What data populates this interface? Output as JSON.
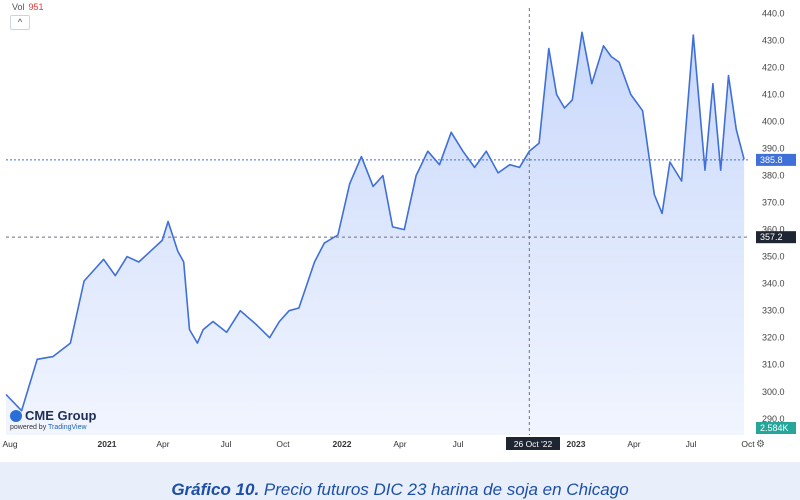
{
  "header": {
    "vol_label": "Vol",
    "vol_value": "951",
    "collapse_glyph": "^"
  },
  "branding": {
    "name": "CME Group",
    "powered_by": "powered by",
    "powered_name": "TradingView"
  },
  "caption": {
    "prefix": "Gráfico 10.",
    "text": " Precio futuros DIC 23 harina de soja en Chicago"
  },
  "colors": {
    "line": "#3f6fd8",
    "fill_top": "#c9d8fb",
    "fill_bottom": "#f1f5fe",
    "crosshair": "#6a7280",
    "vol_up": "#a8dcc7",
    "vol_down": "#f0b3b3"
  },
  "icons": {
    "settings": "gear-icon"
  },
  "chart_data": {
    "type": "area",
    "x_ticks": [
      "Aug",
      "2021",
      "Apr",
      "Jul",
      "Oct",
      "2022",
      "Apr",
      "Jul",
      "26 Oct '22",
      "2023",
      "Apr",
      "Jul",
      "Oct"
    ],
    "y_ticks": [
      "440.0",
      "430.0",
      "420.0",
      "410.0",
      "400.0",
      "390.0",
      "380.0",
      "370.0",
      "360.0",
      "350.0",
      "340.0",
      "330.0",
      "320.0",
      "310.0",
      "300.0",
      "290.0"
    ],
    "ylim": [
      284,
      442
    ],
    "xlim": [
      0,
      38
    ],
    "last_price_label": "385.8",
    "last_price": 385.8,
    "crosshair_price_label": "357.2",
    "crosshair_price": 357.2,
    "crosshair_date_label": "26 Oct '22",
    "crosshair_x": 26.8,
    "volume_label": "2.584K",
    "series": [
      {
        "x": [
          0,
          0.8,
          1.6,
          2.4,
          3.3,
          4.0,
          4.5,
          5.0,
          5.6,
          6.2,
          6.8,
          7.4,
          8.0,
          8.3,
          8.8,
          9.1,
          9.4,
          9.8,
          10.1,
          10.6,
          11.3,
          12.0,
          12.8,
          13.5,
          14.0,
          14.5,
          15.0,
          15.8,
          16.3,
          17.0,
          17.6,
          18.2,
          18.8,
          19.3,
          19.8,
          20.4,
          21.0,
          21.6,
          22.2,
          22.8,
          23.4,
          24.0,
          24.6,
          25.2,
          25.8,
          26.3,
          26.8,
          27.3,
          27.8,
          28.2,
          28.6,
          29.0,
          29.5,
          30.0,
          30.6,
          31.0,
          31.4,
          32.0,
          32.6,
          33.2,
          33.6,
          34.0,
          34.6,
          35.2,
          35.8,
          36.2,
          36.6,
          37.0,
          37.4,
          37.8
        ],
        "values": [
          299,
          293,
          312,
          313,
          318,
          341,
          345,
          349,
          343,
          350,
          348,
          352,
          356,
          363,
          352,
          348,
          323,
          318,
          323,
          326,
          322,
          330,
          325,
          320,
          326,
          330,
          331,
          348,
          355,
          358,
          377,
          387,
          376,
          380,
          361,
          360,
          380,
          389,
          384,
          396,
          389,
          383,
          389,
          381,
          384,
          383,
          389,
          392,
          427,
          410,
          405,
          408,
          433,
          414,
          428,
          424,
          422,
          410,
          404,
          373,
          366,
          385,
          378,
          432,
          382,
          414,
          382,
          417,
          397,
          386
        ]
      }
    ]
  }
}
